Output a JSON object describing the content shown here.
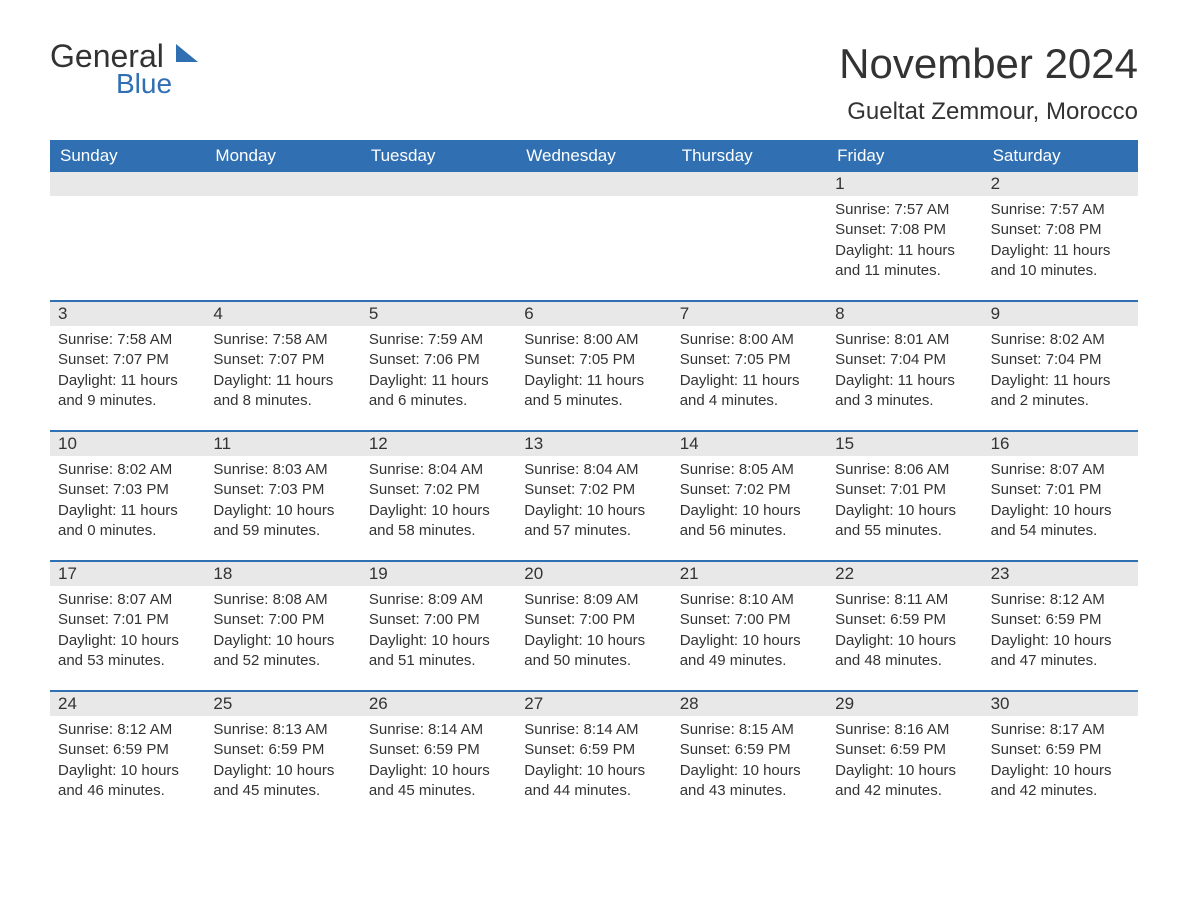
{
  "logo": {
    "word1": "General",
    "word2": "Blue"
  },
  "header": {
    "month_title": "November 2024",
    "location": "Gueltat Zemmour, Morocco"
  },
  "colors": {
    "header_bg": "#2f6fb2",
    "header_fg": "#ffffff",
    "daynum_bg": "#e8e8e8",
    "text": "#333333",
    "accent": "#2f6fb2",
    "page_bg": "#ffffff"
  },
  "calendar": {
    "type": "table",
    "day_labels": [
      "Sunday",
      "Monday",
      "Tuesday",
      "Wednesday",
      "Thursday",
      "Friday",
      "Saturday"
    ],
    "weeks": [
      [
        {
          "blank": true
        },
        {
          "blank": true
        },
        {
          "blank": true
        },
        {
          "blank": true
        },
        {
          "blank": true
        },
        {
          "day": "1",
          "sunrise": "Sunrise: 7:57 AM",
          "sunset": "Sunset: 7:08 PM",
          "daylight": "Daylight: 11 hours and 11 minutes."
        },
        {
          "day": "2",
          "sunrise": "Sunrise: 7:57 AM",
          "sunset": "Sunset: 7:08 PM",
          "daylight": "Daylight: 11 hours and 10 minutes."
        }
      ],
      [
        {
          "day": "3",
          "sunrise": "Sunrise: 7:58 AM",
          "sunset": "Sunset: 7:07 PM",
          "daylight": "Daylight: 11 hours and 9 minutes."
        },
        {
          "day": "4",
          "sunrise": "Sunrise: 7:58 AM",
          "sunset": "Sunset: 7:07 PM",
          "daylight": "Daylight: 11 hours and 8 minutes."
        },
        {
          "day": "5",
          "sunrise": "Sunrise: 7:59 AM",
          "sunset": "Sunset: 7:06 PM",
          "daylight": "Daylight: 11 hours and 6 minutes."
        },
        {
          "day": "6",
          "sunrise": "Sunrise: 8:00 AM",
          "sunset": "Sunset: 7:05 PM",
          "daylight": "Daylight: 11 hours and 5 minutes."
        },
        {
          "day": "7",
          "sunrise": "Sunrise: 8:00 AM",
          "sunset": "Sunset: 7:05 PM",
          "daylight": "Daylight: 11 hours and 4 minutes."
        },
        {
          "day": "8",
          "sunrise": "Sunrise: 8:01 AM",
          "sunset": "Sunset: 7:04 PM",
          "daylight": "Daylight: 11 hours and 3 minutes."
        },
        {
          "day": "9",
          "sunrise": "Sunrise: 8:02 AM",
          "sunset": "Sunset: 7:04 PM",
          "daylight": "Daylight: 11 hours and 2 minutes."
        }
      ],
      [
        {
          "day": "10",
          "sunrise": "Sunrise: 8:02 AM",
          "sunset": "Sunset: 7:03 PM",
          "daylight": "Daylight: 11 hours and 0 minutes."
        },
        {
          "day": "11",
          "sunrise": "Sunrise: 8:03 AM",
          "sunset": "Sunset: 7:03 PM",
          "daylight": "Daylight: 10 hours and 59 minutes."
        },
        {
          "day": "12",
          "sunrise": "Sunrise: 8:04 AM",
          "sunset": "Sunset: 7:02 PM",
          "daylight": "Daylight: 10 hours and 58 minutes."
        },
        {
          "day": "13",
          "sunrise": "Sunrise: 8:04 AM",
          "sunset": "Sunset: 7:02 PM",
          "daylight": "Daylight: 10 hours and 57 minutes."
        },
        {
          "day": "14",
          "sunrise": "Sunrise: 8:05 AM",
          "sunset": "Sunset: 7:02 PM",
          "daylight": "Daylight: 10 hours and 56 minutes."
        },
        {
          "day": "15",
          "sunrise": "Sunrise: 8:06 AM",
          "sunset": "Sunset: 7:01 PM",
          "daylight": "Daylight: 10 hours and 55 minutes."
        },
        {
          "day": "16",
          "sunrise": "Sunrise: 8:07 AM",
          "sunset": "Sunset: 7:01 PM",
          "daylight": "Daylight: 10 hours and 54 minutes."
        }
      ],
      [
        {
          "day": "17",
          "sunrise": "Sunrise: 8:07 AM",
          "sunset": "Sunset: 7:01 PM",
          "daylight": "Daylight: 10 hours and 53 minutes."
        },
        {
          "day": "18",
          "sunrise": "Sunrise: 8:08 AM",
          "sunset": "Sunset: 7:00 PM",
          "daylight": "Daylight: 10 hours and 52 minutes."
        },
        {
          "day": "19",
          "sunrise": "Sunrise: 8:09 AM",
          "sunset": "Sunset: 7:00 PM",
          "daylight": "Daylight: 10 hours and 51 minutes."
        },
        {
          "day": "20",
          "sunrise": "Sunrise: 8:09 AM",
          "sunset": "Sunset: 7:00 PM",
          "daylight": "Daylight: 10 hours and 50 minutes."
        },
        {
          "day": "21",
          "sunrise": "Sunrise: 8:10 AM",
          "sunset": "Sunset: 7:00 PM",
          "daylight": "Daylight: 10 hours and 49 minutes."
        },
        {
          "day": "22",
          "sunrise": "Sunrise: 8:11 AM",
          "sunset": "Sunset: 6:59 PM",
          "daylight": "Daylight: 10 hours and 48 minutes."
        },
        {
          "day": "23",
          "sunrise": "Sunrise: 8:12 AM",
          "sunset": "Sunset: 6:59 PM",
          "daylight": "Daylight: 10 hours and 47 minutes."
        }
      ],
      [
        {
          "day": "24",
          "sunrise": "Sunrise: 8:12 AM",
          "sunset": "Sunset: 6:59 PM",
          "daylight": "Daylight: 10 hours and 46 minutes."
        },
        {
          "day": "25",
          "sunrise": "Sunrise: 8:13 AM",
          "sunset": "Sunset: 6:59 PM",
          "daylight": "Daylight: 10 hours and 45 minutes."
        },
        {
          "day": "26",
          "sunrise": "Sunrise: 8:14 AM",
          "sunset": "Sunset: 6:59 PM",
          "daylight": "Daylight: 10 hours and 45 minutes."
        },
        {
          "day": "27",
          "sunrise": "Sunrise: 8:14 AM",
          "sunset": "Sunset: 6:59 PM",
          "daylight": "Daylight: 10 hours and 44 minutes."
        },
        {
          "day": "28",
          "sunrise": "Sunrise: 8:15 AM",
          "sunset": "Sunset: 6:59 PM",
          "daylight": "Daylight: 10 hours and 43 minutes."
        },
        {
          "day": "29",
          "sunrise": "Sunrise: 8:16 AM",
          "sunset": "Sunset: 6:59 PM",
          "daylight": "Daylight: 10 hours and 42 minutes."
        },
        {
          "day": "30",
          "sunrise": "Sunrise: 8:17 AM",
          "sunset": "Sunset: 6:59 PM",
          "daylight": "Daylight: 10 hours and 42 minutes."
        }
      ]
    ]
  }
}
